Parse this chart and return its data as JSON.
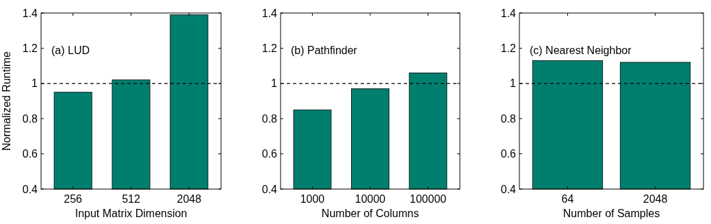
{
  "chart_data": [
    {
      "type": "bar",
      "categories": [
        "256",
        "512",
        "2048"
      ],
      "values": [
        0.95,
        1.02,
        1.39
      ],
      "color": "#007f6e",
      "xlabel": "Input Matrix Dimension",
      "ylabel": "Normalized Runtime",
      "ylim": [
        0.4,
        1.4
      ],
      "yticks": [
        0.4,
        0.6,
        0.8,
        1,
        1.2,
        1.4
      ],
      "annotations": [
        "(a) LUD"
      ],
      "ref_lines": [
        {
          "axis": "y",
          "value": 1,
          "color": "#000000",
          "line_style": "dashed"
        }
      ]
    },
    {
      "type": "bar",
      "categories": [
        "1000",
        "10000",
        "100000"
      ],
      "values": [
        0.85,
        0.97,
        1.06
      ],
      "color": "#007f6e",
      "xlabel": "Number of Columns",
      "ylim": [
        0.4,
        1.4
      ],
      "yticks": [
        0.4,
        0.6,
        0.8,
        1,
        1.2,
        1.4
      ],
      "annotations": [
        "(b) Pathfinder"
      ],
      "ref_lines": [
        {
          "axis": "y",
          "value": 1,
          "color": "#000000",
          "line_style": "dashed"
        }
      ]
    },
    {
      "type": "bar",
      "categories": [
        "64",
        "2048"
      ],
      "values": [
        1.13,
        1.12
      ],
      "color": "#007f6e",
      "xlabel": "Number of Samples",
      "ylim": [
        0.4,
        1.4
      ],
      "yticks": [
        0.4,
        0.6,
        0.8,
        1,
        1.2,
        1.4
      ],
      "annotations": [
        "(c) Nearest Neighbor"
      ],
      "ref_lines": [
        {
          "axis": "y",
          "value": 1,
          "color": "#000000",
          "line_style": "dashed"
        }
      ]
    }
  ]
}
